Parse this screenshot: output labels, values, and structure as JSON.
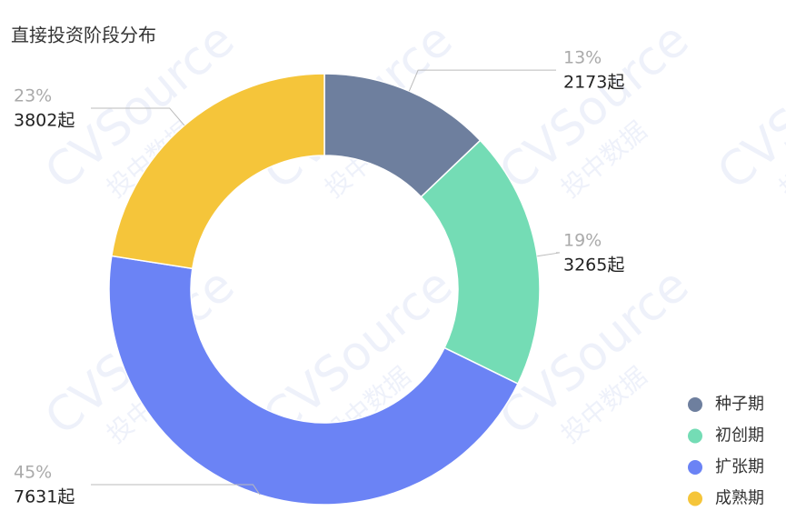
{
  "chart_data": {
    "type": "pie",
    "title": "直接投资阶段分布",
    "categories": [
      "种子期",
      "初创期",
      "扩张期",
      "成熟期"
    ],
    "values": [
      2173,
      3265,
      7631,
      3802
    ],
    "value_labels": [
      "2173起",
      "3265起",
      "7631起",
      "3802起"
    ],
    "percents": [
      13,
      19,
      45,
      23
    ],
    "percent_labels": [
      "13%",
      "19%",
      "45%",
      "23%"
    ],
    "colors": [
      "#6e7f9e",
      "#74dcb5",
      "#6b83f5",
      "#f5c53a"
    ],
    "donut": true,
    "legend_position": "bottom-right",
    "watermark": [
      "CVSource",
      "投中数据"
    ]
  }
}
